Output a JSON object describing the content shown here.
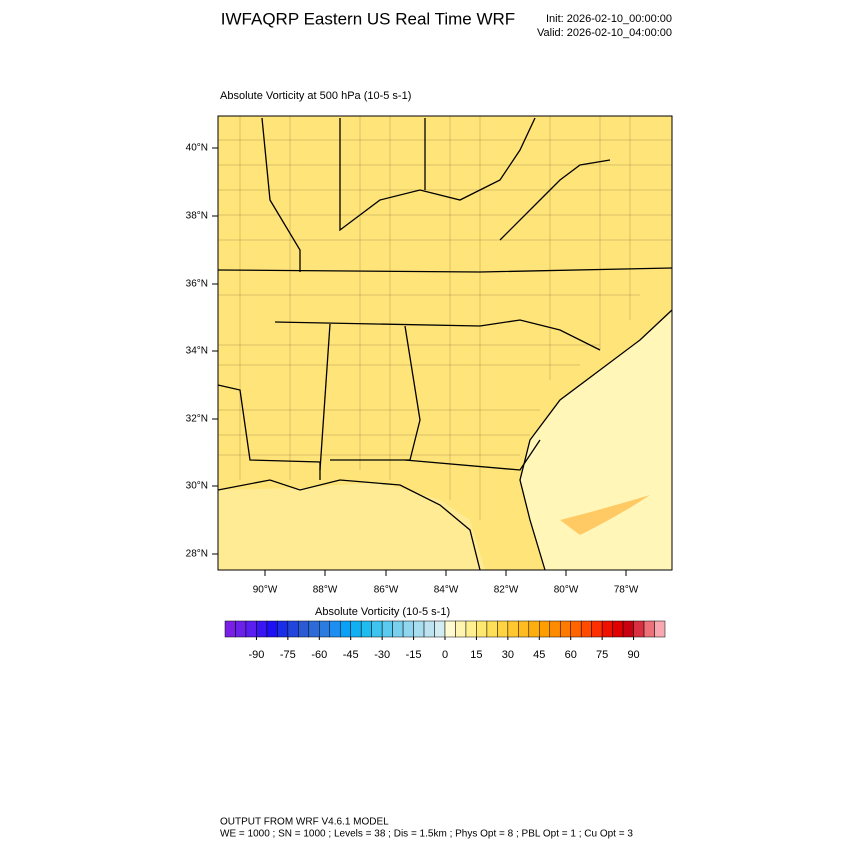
{
  "header": {
    "title": "IWFAQRP Eastern US Real Time WRF",
    "init": "Init: 2026-02-10_00:00:00",
    "valid": "Valid: 2026-02-10_04:00:00"
  },
  "map": {
    "title": "Absolute Vorticity at 500 hPa   (10-5 s-1)",
    "lat_labels": [
      "40°N",
      "38°N",
      "36°N",
      "34°N",
      "32°N",
      "30°N",
      "28°N"
    ],
    "lon_labels": [
      "90°W",
      "88°W",
      "86°W",
      "84°W",
      "82°W",
      "80°W",
      "78°W"
    ]
  },
  "colorbar": {
    "title": "Absolute Vorticity  (10-5 s-1)",
    "lim": [
      -105,
      105
    ],
    "ticks": [
      -90,
      -75,
      -60,
      -45,
      -30,
      -15,
      0,
      15,
      30,
      45,
      60,
      75,
      90
    ],
    "colors": [
      "#7a1fe6",
      "#6a22e8",
      "#5a1ff0",
      "#3a16f2",
      "#1e10f5",
      "#1a2ee8",
      "#2245dc",
      "#2a5ad4",
      "#2e6ad8",
      "#2a7ce0",
      "#1e8ef0",
      "#0aa0f5",
      "#10b0f5",
      "#20bcf0",
      "#3ec4ee",
      "#5ccaee",
      "#78cfee",
      "#90d6ee",
      "#a8dcef",
      "#bde3f0",
      "#d2ecf2",
      "#fffad0",
      "#fff5b0",
      "#ffef90",
      "#ffe870",
      "#ffde58",
      "#ffd440",
      "#ffc830",
      "#ffbc20",
      "#ffae10",
      "#ff9e00",
      "#ff8c00",
      "#ff7a00",
      "#ff6400",
      "#ff4c00",
      "#ff3000",
      "#f01000",
      "#e00000",
      "#c80010",
      "#d83040",
      "#ee7078",
      "#f8a8b0"
    ]
  },
  "footer": {
    "line1": "OUTPUT FROM WRF V4.6.1 MODEL",
    "line2": "WE = 1000 ; SN = 1000 ; Levels = 38 ; Dis = 1.5km ; Phys Opt = 8 ; PBL Opt = 1 ; Cu Opt = 3"
  }
}
